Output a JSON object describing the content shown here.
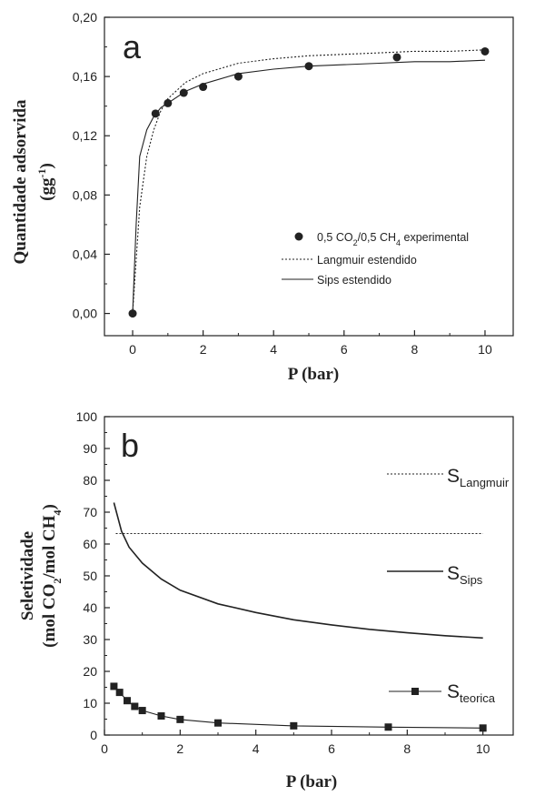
{
  "chart_data": [
    {
      "type": "line",
      "panel_label": "a",
      "xlabel": "P (bar)",
      "ylabel": "Quantidade adsorvida",
      "ylabel_unit": "(gg",
      "ylabel_unit_sup": "-1",
      "ylabel_unit_close": ")",
      "xlim": [
        -0.8,
        10.8
      ],
      "ylim": [
        -0.015,
        0.2
      ],
      "x_ticks": [
        0,
        2,
        4,
        6,
        8,
        10
      ],
      "x_tick_labels": [
        "0",
        "2",
        "4",
        "6",
        "8",
        "10"
      ],
      "y_ticks": [
        0.0,
        0.04,
        0.08,
        0.12,
        0.16,
        0.2
      ],
      "y_tick_labels": [
        "0,00",
        "0,04",
        "0,08",
        "0,12",
        "0,16",
        "0,20"
      ],
      "legend_position": "center-right",
      "series": [
        {
          "name": "0,5 CO2/0,5 CH4 experimental",
          "legend_parts": [
            "0,5 CO",
            "2",
            "/0,5 CH",
            "4",
            " experimental"
          ],
          "style": "points",
          "marker": "circle",
          "x": [
            0,
            0.65,
            1.0,
            1.45,
            2.0,
            3.0,
            5.0,
            7.5,
            10.0
          ],
          "y": [
            0.0,
            0.135,
            0.142,
            0.149,
            0.153,
            0.16,
            0.167,
            0.173,
            0.177
          ]
        },
        {
          "name": "Langmuir estendido",
          "style": "dotted",
          "x": [
            0,
            0.2,
            0.4,
            0.6,
            0.8,
            1.0,
            1.5,
            2.0,
            3.0,
            4.0,
            5.0,
            6.0,
            7.0,
            8.0,
            9.0,
            10.0
          ],
          "y": [
            0.0,
            0.072,
            0.106,
            0.124,
            0.137,
            0.145,
            0.156,
            0.162,
            0.169,
            0.172,
            0.174,
            0.175,
            0.176,
            0.177,
            0.177,
            0.178
          ]
        },
        {
          "name": "Sips estendido",
          "style": "solid",
          "x": [
            0,
            0.1,
            0.2,
            0.4,
            0.6,
            0.8,
            1.0,
            1.5,
            2.0,
            3.0,
            4.0,
            5.0,
            6.0,
            7.0,
            8.0,
            9.0,
            10.0
          ],
          "y": [
            0.0,
            0.06,
            0.106,
            0.124,
            0.133,
            0.139,
            0.142,
            0.15,
            0.155,
            0.162,
            0.165,
            0.167,
            0.168,
            0.169,
            0.17,
            0.17,
            0.171
          ]
        }
      ]
    },
    {
      "type": "line",
      "panel_label": "b",
      "xlabel": "P (bar)",
      "ylabel": "Seletividade",
      "ylabel_unit_parts": [
        "(mol CO",
        "2",
        "/mol CH",
        "4",
        ")"
      ],
      "xlim": [
        0,
        10.8
      ],
      "ylim": [
        0,
        100
      ],
      "x_ticks": [
        0,
        2,
        4,
        6,
        8,
        10
      ],
      "x_tick_labels": [
        "0",
        "2",
        "4",
        "6",
        "8",
        "10"
      ],
      "y_ticks": [
        0,
        10,
        20,
        30,
        40,
        50,
        60,
        70,
        80,
        90,
        100
      ],
      "y_tick_labels": [
        "0",
        "10",
        "20",
        "30",
        "40",
        "50",
        "60",
        "70",
        "80",
        "90",
        "100"
      ],
      "series": [
        {
          "name": "SLangmuir",
          "label_main": "S",
          "label_sub": "Langmuir",
          "style": "dotted",
          "x": [
            0.3,
            10.0
          ],
          "y": [
            63.3,
            63.3
          ]
        },
        {
          "name": "SSips",
          "label_main": "S",
          "label_sub": "Sips",
          "style": "solid",
          "x": [
            0.25,
            0.45,
            0.65,
            1.0,
            1.5,
            2.0,
            3.0,
            4.0,
            5.0,
            6.0,
            7.0,
            8.0,
            9.0,
            10.0
          ],
          "y": [
            73,
            64,
            59,
            54,
            49,
            45.5,
            41.2,
            38.5,
            36.2,
            34.6,
            33.2,
            32.1,
            31.2,
            30.5
          ]
        },
        {
          "name": "Steorica",
          "label_main": "S",
          "label_sub": "teorica",
          "style": "line-markers",
          "marker": "square",
          "x": [
            0.25,
            0.4,
            0.6,
            0.8,
            1.0,
            1.5,
            2.0,
            3.0,
            5.0,
            7.5,
            10.0
          ],
          "y": [
            15.3,
            13.4,
            10.8,
            9.0,
            7.7,
            6.0,
            4.9,
            3.8,
            2.9,
            2.5,
            2.2
          ]
        }
      ]
    }
  ]
}
